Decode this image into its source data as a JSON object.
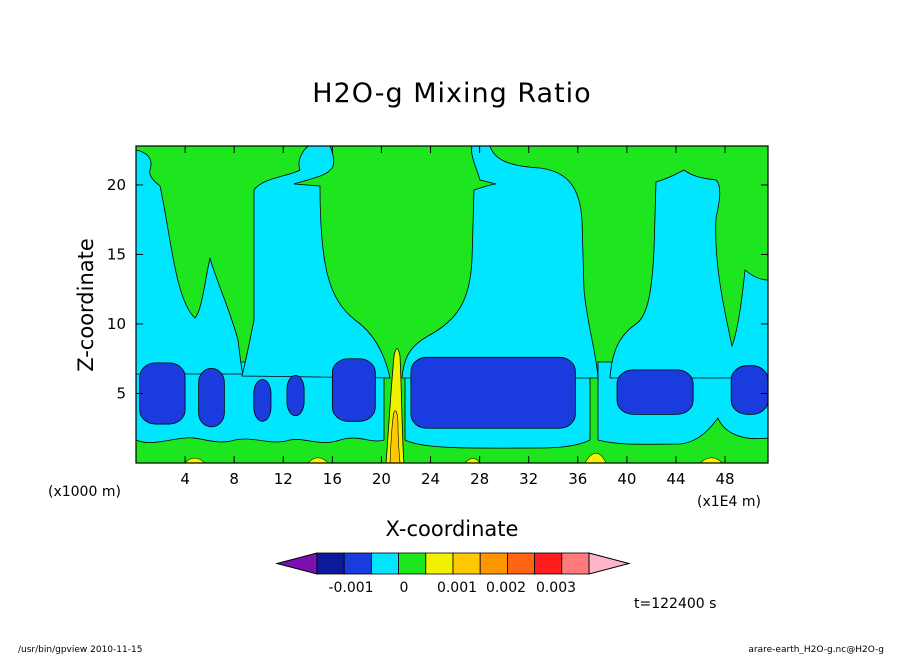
{
  "chart_data": {
    "type": "heatmap",
    "title": "H2O-g Mixing Ratio",
    "xlabel": "X-coordinate",
    "ylabel": "Z-coordinate",
    "x_unit_left": "(x1000 m)",
    "x_unit_right": "(x1E4 m)",
    "xlim": [
      0,
      51.5
    ],
    "ylim": [
      0,
      22.8
    ],
    "x_ticks": [
      "4",
      "8",
      "12",
      "16",
      "20",
      "24",
      "28",
      "32",
      "36",
      "40",
      "44",
      "48"
    ],
    "x_tick_values": [
      4,
      8,
      12,
      16,
      20,
      24,
      28,
      32,
      36,
      40,
      44,
      48
    ],
    "y_ticks": [
      "5",
      "10",
      "15",
      "20"
    ],
    "y_tick_values": [
      5,
      10,
      15,
      20
    ],
    "time_label": "t=122400 s",
    "colorbar": {
      "labels": [
        "-0.001",
        "0",
        "0.001",
        "0.002",
        "0.003"
      ],
      "colors": [
        "#7a10b0",
        "#0a1a9a",
        "#1a3cde",
        "#00e6ff",
        "#1ee61e",
        "#f2f200",
        "#ffc800",
        "#ff9600",
        "#ff6414",
        "#ff1e1e",
        "#ff7a7a",
        "#ffb4c8"
      ]
    },
    "regions": [
      {
        "level": "cyan",
        "color": "#00e6ff",
        "desc": "low-level band",
        "x": [
          0,
          51.5
        ],
        "z": [
          0.8,
          8
        ]
      },
      {
        "level": "cyan",
        "color": "#00e6ff",
        "desc": "plume left",
        "x": [
          0.5,
          9
        ],
        "z": [
          5,
          22
        ]
      },
      {
        "level": "cyan",
        "color": "#00e6ff",
        "desc": "plume center-left",
        "x": [
          9.5,
          20.5
        ],
        "z": [
          5,
          22.8
        ]
      },
      {
        "level": "cyan",
        "color": "#00e6ff",
        "desc": "plume center-right",
        "x": [
          22,
          37
        ],
        "z": [
          5,
          22.8
        ]
      },
      {
        "level": "cyan",
        "color": "#00e6ff",
        "desc": "plume right",
        "x": [
          38.5,
          47
        ],
        "z": [
          5,
          22
        ]
      },
      {
        "level": "blue",
        "color": "#1a3cde",
        "x": [
          0.3,
          4
        ],
        "z": [
          2.8,
          7.2
        ]
      },
      {
        "level": "blue",
        "color": "#1a3cde",
        "x": [
          5.1,
          7.2
        ],
        "z": [
          2.6,
          6.8
        ]
      },
      {
        "level": "blue",
        "color": "#1a3cde",
        "x": [
          9.6,
          11
        ],
        "z": [
          3,
          6
        ]
      },
      {
        "level": "blue",
        "color": "#1a3cde",
        "x": [
          12.3,
          13.7
        ],
        "z": [
          3.4,
          6.3
        ]
      },
      {
        "level": "blue",
        "color": "#1a3cde",
        "x": [
          16,
          19.5
        ],
        "z": [
          3,
          7.5
        ]
      },
      {
        "level": "blue",
        "color": "#1a3cde",
        "x": [
          22.4,
          35.8
        ],
        "z": [
          2.5,
          7.6
        ]
      },
      {
        "level": "blue",
        "color": "#1a3cde",
        "x": [
          39.2,
          45.4
        ],
        "z": [
          3.5,
          6.7
        ]
      },
      {
        "level": "blue",
        "color": "#1a3cde",
        "x": [
          48.5,
          51.5
        ],
        "z": [
          3.5,
          7
        ]
      },
      {
        "level": "yellow",
        "color": "#f2f200",
        "x": [
          20.3,
          21.3
        ],
        "z": [
          0,
          8.3
        ]
      },
      {
        "level": "orange",
        "color": "#ffc800",
        "x": [
          20.7,
          21.1
        ],
        "z": [
          0,
          3.8
        ]
      }
    ]
  },
  "footer": {
    "left": "/usr/bin/gpview  2010-11-15",
    "right": "arare-earth_H2O-g.nc@H2O-g"
  }
}
